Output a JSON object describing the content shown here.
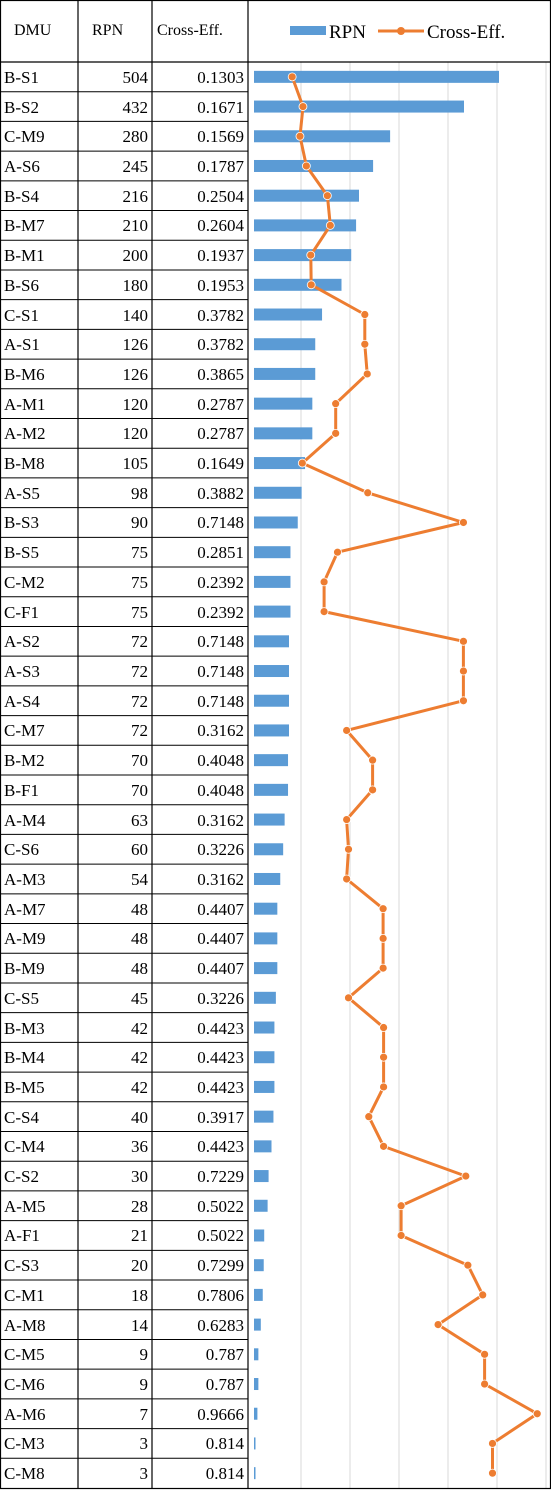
{
  "headers": {
    "dmu": "DMU",
    "rpn": "RPN",
    "ce": "Cross-Eff."
  },
  "chart_data": {
    "type": "bar",
    "orientation": "horizontal",
    "categories": [
      "B-S1",
      "B-S2",
      "C-M9",
      "A-S6",
      "B-S4",
      "B-M7",
      "B-M1",
      "B-S6",
      "C-S1",
      "A-S1",
      "B-M6",
      "A-M1",
      "A-M2",
      "B-M8",
      "A-S5",
      "B-S3",
      "B-S5",
      "C-M2",
      "C-F1",
      "A-S2",
      "A-S3",
      "A-S4",
      "C-M7",
      "B-M2",
      "B-F1",
      "A-M4",
      "C-S6",
      "A-M3",
      "A-M7",
      "A-M9",
      "B-M9",
      "C-S5",
      "B-M3",
      "B-M4",
      "B-M5",
      "C-S4",
      "C-M4",
      "C-S2",
      "A-M5",
      "A-F1",
      "C-S3",
      "C-M1",
      "A-M8",
      "C-M5",
      "C-M6",
      "A-M6",
      "C-M3",
      "C-M8"
    ],
    "rpn_labels": [
      "504",
      "432",
      "280",
      "245",
      "216",
      "210",
      "200",
      "180",
      "140",
      "126",
      "126",
      "120",
      "120",
      "105",
      "98",
      "90",
      "75",
      "75",
      "75",
      "72",
      "72",
      "72",
      "72",
      "70",
      "70",
      "63",
      "60",
      "54",
      "48",
      "48",
      "48",
      "45",
      "42",
      "42",
      "42",
      "40",
      "36",
      "30",
      "28",
      "21",
      "20",
      "18",
      "14",
      "9",
      "9",
      "7",
      "3",
      "3"
    ],
    "ce_labels": [
      "0.1303",
      "0.1671",
      "0.1569",
      "0.1787",
      "0.2504",
      "0.2604",
      "0.1937",
      "0.1953",
      "0.3782",
      "0.3782",
      "0.3865",
      "0.2787",
      "0.2787",
      "0.1649",
      "0.3882",
      "0.7148",
      "0.2851",
      "0.2392",
      "0.2392",
      "0.7148",
      "0.7148",
      "0.7148",
      "0.3162",
      "0.4048",
      "0.4048",
      "0.3162",
      "0.3226",
      "0.3162",
      "0.4407",
      "0.4407",
      "0.4407",
      "0.3226",
      "0.4423",
      "0.4423",
      "0.4423",
      "0.3917",
      "0.4423",
      "0.7229",
      "0.5022",
      "0.5022",
      "0.7299",
      "0.7806",
      "0.6283",
      "0.787",
      "0.787",
      "0.9666",
      "0.814",
      "0.814"
    ],
    "series": [
      {
        "name": "RPN",
        "type": "bar",
        "color": "#5B9BD5",
        "values": [
          504,
          432,
          280,
          245,
          216,
          210,
          200,
          180,
          140,
          126,
          126,
          120,
          120,
          105,
          98,
          90,
          75,
          75,
          75,
          72,
          72,
          72,
          72,
          70,
          70,
          63,
          60,
          54,
          48,
          48,
          48,
          45,
          42,
          42,
          42,
          40,
          36,
          30,
          28,
          21,
          20,
          18,
          14,
          9,
          9,
          7,
          3,
          3
        ]
      },
      {
        "name": "Cross-Eff.",
        "type": "line",
        "color": "#ED7D31",
        "values": [
          0.1303,
          0.1671,
          0.1569,
          0.1787,
          0.2504,
          0.2604,
          0.1937,
          0.1953,
          0.3782,
          0.3782,
          0.3865,
          0.2787,
          0.2787,
          0.1649,
          0.3882,
          0.7148,
          0.2851,
          0.2392,
          0.2392,
          0.7148,
          0.7148,
          0.7148,
          0.3162,
          0.4048,
          0.4048,
          0.3162,
          0.3226,
          0.3162,
          0.4407,
          0.4407,
          0.4407,
          0.3226,
          0.4423,
          0.4423,
          0.4423,
          0.3917,
          0.4423,
          0.7229,
          0.5022,
          0.5022,
          0.7299,
          0.7806,
          0.6283,
          0.787,
          0.787,
          0.9666,
          0.814,
          0.814
        ]
      }
    ],
    "xlim_rpn": [
      0,
      600
    ],
    "xlim_ce": [
      0,
      1.0
    ],
    "grid": true,
    "legend_position": "top"
  }
}
